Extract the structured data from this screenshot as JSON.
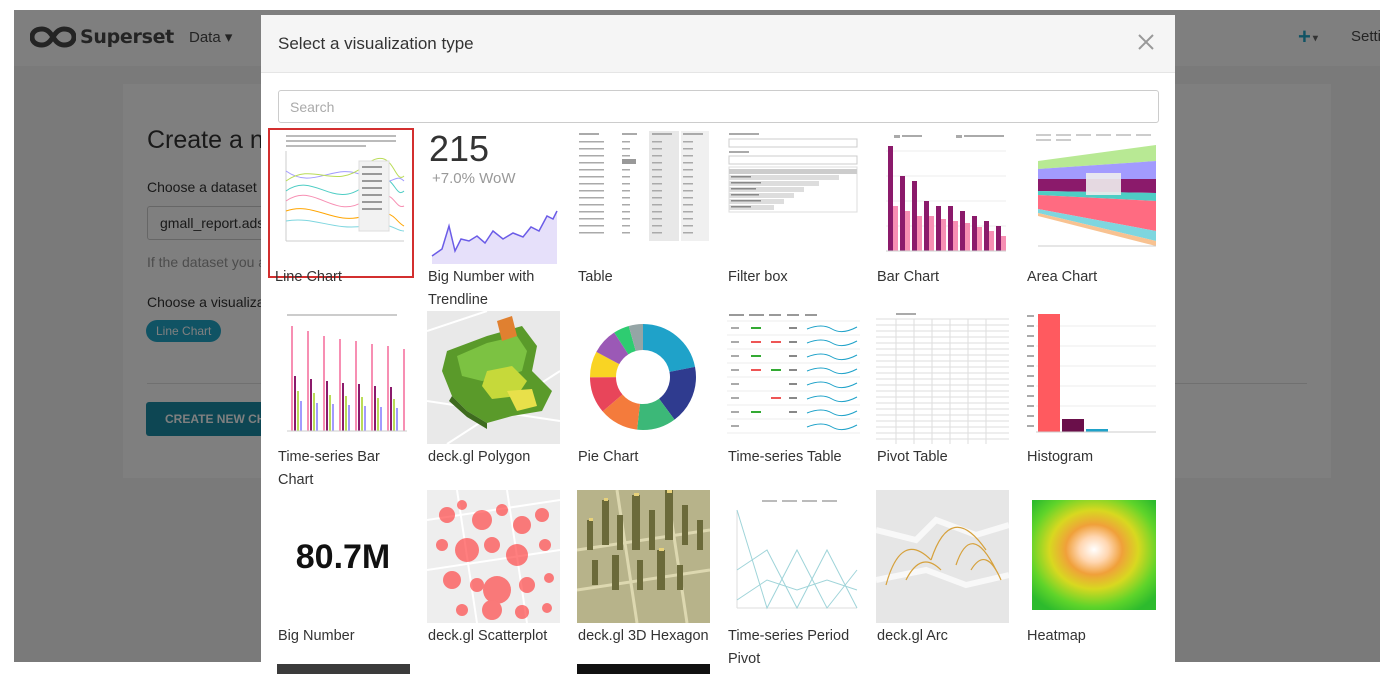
{
  "app": {
    "brand": "Superset",
    "nav_data": "Data ▾",
    "nav_plus": "+",
    "nav_settings": "Settings"
  },
  "page": {
    "title": "Create a new chart",
    "choose_dataset_label": "Choose a dataset",
    "dataset_value": "gmall_report.ads_",
    "dataset_help": "If the dataset you are looking for is not available in the list, follow the instructions",
    "choose_viz_label": "Choose a visualization type",
    "selected_viz_tag": "Line Chart",
    "create_button": "CREATE NEW CHART"
  },
  "modal": {
    "title": "Select a visualization type",
    "search_placeholder": "Search",
    "big_number_trend": {
      "value": "215",
      "delta": "+7.0% WoW"
    },
    "big_number": "80.7M",
    "tiles": [
      {
        "label": "Line Chart",
        "icon": "line-chart-thumb",
        "selected": true
      },
      {
        "label": "Big Number with Trendline",
        "icon": "big-number-trendline-thumb",
        "selected": false
      },
      {
        "label": "Table",
        "icon": "table-thumb",
        "selected": false
      },
      {
        "label": "Filter box",
        "icon": "filter-box-thumb",
        "selected": false
      },
      {
        "label": "Bar Chart",
        "icon": "bar-chart-thumb",
        "selected": false
      },
      {
        "label": "Area Chart",
        "icon": "area-chart-thumb",
        "selected": false
      },
      {
        "label": "Time-series Bar Chart",
        "icon": "time-series-bar-thumb",
        "selected": false
      },
      {
        "label": "deck.gl Polygon",
        "icon": "deckgl-polygon-thumb",
        "selected": false
      },
      {
        "label": "Pie Chart",
        "icon": "pie-chart-thumb",
        "selected": false
      },
      {
        "label": "Time-series Table",
        "icon": "time-series-table-thumb",
        "selected": false
      },
      {
        "label": "Pivot Table",
        "icon": "pivot-table-thumb",
        "selected": false
      },
      {
        "label": "Histogram",
        "icon": "histogram-thumb",
        "selected": false
      },
      {
        "label": "Big Number",
        "icon": "big-number-thumb",
        "selected": false
      },
      {
        "label": "deck.gl Scatterplot",
        "icon": "deckgl-scatterplot-thumb",
        "selected": false
      },
      {
        "label": "deck.gl 3D Hexagon",
        "icon": "deckgl-3d-hexagon-thumb",
        "selected": false
      },
      {
        "label": "Time-series Period Pivot",
        "icon": "time-series-period-pivot-thumb",
        "selected": false
      },
      {
        "label": "deck.gl Arc",
        "icon": "deckgl-arc-thumb",
        "selected": false
      },
      {
        "label": "Heatmap",
        "icon": "heatmap-thumb",
        "selected": false
      }
    ]
  },
  "colors": {
    "accent": "#20a7c9",
    "selected_border": "#d32f2f",
    "overlay": "rgba(0,0,0,0.5)"
  }
}
